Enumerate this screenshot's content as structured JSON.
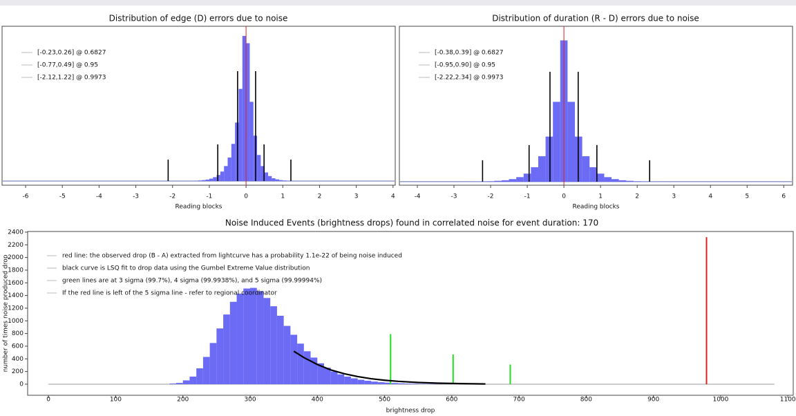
{
  "chart_data": [
    {
      "type": "histogram",
      "title": "Distribution of edge (D) errors due to noise",
      "x_label": "Reading blocks",
      "color": "#6b6bf5",
      "bins": [
        -1.5,
        -1.4,
        -1.3,
        -1.2,
        -1.1,
        -1.0,
        -0.9,
        -0.8,
        -0.7,
        -0.6,
        -0.5,
        -0.4,
        -0.3,
        -0.2,
        -0.1,
        0.0,
        0.1,
        0.2,
        0.3,
        0.4,
        0.5,
        0.6,
        0.7,
        0.8,
        0.9,
        1.0,
        1.1,
        1.2
      ],
      "counts": [
        1,
        2,
        3,
        5,
        8,
        13,
        21,
        33,
        52,
        82,
        129,
        204,
        321,
        506,
        797,
        757,
        435,
        249,
        143,
        82,
        47,
        27,
        15,
        9,
        5,
        3,
        2
      ],
      "xlim": [
        -6.64,
        4.06
      ],
      "xticks": [
        -6,
        -5,
        -4,
        -3,
        -2,
        -1,
        0,
        1,
        2,
        3,
        4
      ],
      "ylim": [
        -23,
        850
      ],
      "center": 0,
      "center_color": "#e02020",
      "interval_color": "#000000",
      "intervals": [
        {
          "label": "[-0.23,0.26] @ 0.6827",
          "low": -0.23,
          "high": 0.26
        },
        {
          "label": "[-0.77,0.49] @ 0.95",
          "low": -0.77,
          "high": 0.49
        },
        {
          "label": "[-2.12,1.22] @ 0.9973",
          "low": -2.12,
          "high": 1.22
        }
      ]
    },
    {
      "type": "histogram",
      "title": "Distribution of duration (R - D) errors due to noise",
      "x_label": "Reading blocks",
      "color": "#6b6bf5",
      "bins": [
        -2.5,
        -2.3,
        -2.1,
        -1.9,
        -1.7,
        -1.5,
        -1.3,
        -1.1,
        -0.9,
        -0.7,
        -0.5,
        -0.3,
        -0.1,
        0.1,
        0.3,
        0.5,
        0.7,
        0.9,
        1.1,
        1.3,
        1.5,
        1.7,
        1.9,
        2.1,
        2.3,
        2.5
      ],
      "counts": [
        1,
        2,
        3,
        6,
        10,
        18,
        32,
        57,
        102,
        180,
        319,
        565,
        1000,
        565,
        319,
        180,
        102,
        57,
        32,
        18,
        10,
        6,
        3,
        2,
        1
      ],
      "xlim": [
        -4.49,
        6.24
      ],
      "xticks": [
        -4,
        -3,
        -2,
        -1,
        0,
        1,
        2,
        3,
        4,
        5,
        6
      ],
      "ylim": [
        -25,
        1100
      ],
      "center": 0,
      "center_color": "#e02020",
      "interval_color": "#000000",
      "intervals": [
        {
          "label": "[-0.38,0.39] @ 0.6827",
          "low": -0.38,
          "high": 0.39
        },
        {
          "label": "[-0.95,0.90] @ 0.95",
          "low": -0.95,
          "high": 0.9
        },
        {
          "label": "[-2.22,2.34] @ 0.9973",
          "low": -2.22,
          "high": 2.34
        }
      ]
    },
    {
      "type": "histogram",
      "title": "Noise Induced Events (brightness drops) found in correlated noise for event duration: 170",
      "x_label": "brightness drop",
      "y_label": "number of times noise produced drop",
      "color": "#6b6bf5",
      "bins": [
        180,
        190,
        200,
        210,
        220,
        230,
        240,
        250,
        260,
        270,
        280,
        290,
        300,
        310,
        320,
        330,
        340,
        350,
        360,
        370,
        380,
        390,
        400,
        410,
        420,
        430,
        440,
        450,
        460,
        470,
        480,
        490,
        500,
        510,
        520,
        530,
        540,
        550,
        560,
        570,
        580,
        590,
        600,
        610,
        620,
        630,
        640,
        650
      ],
      "counts": [
        10,
        20,
        60,
        120,
        250,
        430,
        650,
        880,
        1100,
        1300,
        1430,
        1510,
        1520,
        1470,
        1360,
        1230,
        1080,
        920,
        780,
        640,
        520,
        420,
        330,
        260,
        200,
        155,
        120,
        92,
        70,
        54,
        41,
        31,
        24,
        18,
        14,
        10,
        8,
        6,
        4,
        3,
        2,
        2,
        1,
        1,
        1,
        1,
        0
      ],
      "xlim": [
        -31,
        1108
      ],
      "xticks": [
        0,
        100,
        200,
        300,
        400,
        500,
        600,
        700,
        800,
        900,
        1000,
        1100
      ],
      "ylim": [
        -175,
        2410
      ],
      "yticks": [
        0,
        200,
        400,
        600,
        800,
        1000,
        1200,
        1400,
        1600,
        1800,
        2000,
        2200,
        2400
      ],
      "baseline": [
        0,
        1080
      ],
      "fit": {
        "color": "#000000",
        "x": [
          365,
          380,
          400,
          420,
          440,
          460,
          480,
          500,
          520,
          550,
          580,
          620,
          650
        ],
        "y": [
          520,
          420,
          310,
          225,
          165,
          120,
          86,
          62,
          45,
          27,
          16,
          8,
          4
        ]
      },
      "vlines": [
        {
          "x": 509,
          "y": 790,
          "color": "#22dd22"
        },
        {
          "x": 602,
          "y": 470,
          "color": "#22dd22"
        },
        {
          "x": 687,
          "y": 310,
          "color": "#22dd22"
        },
        {
          "x": 979,
          "y": 2320,
          "color": "#dd2222"
        }
      ],
      "legend": [
        "red line: the observed drop (B - A) extracted from lightcurve has a probability 1.1e-22 of being noise induced",
        "black curve is LSQ fit to drop data using the Gumbel Extreme Value distribution",
        "green lines are at 3 sigma (99.7%), 4 sigma (99.9938%), and 5 sigma (99.99994%)",
        "If the red line is left of the 5 sigma line - refer to regional coordinator"
      ]
    }
  ]
}
